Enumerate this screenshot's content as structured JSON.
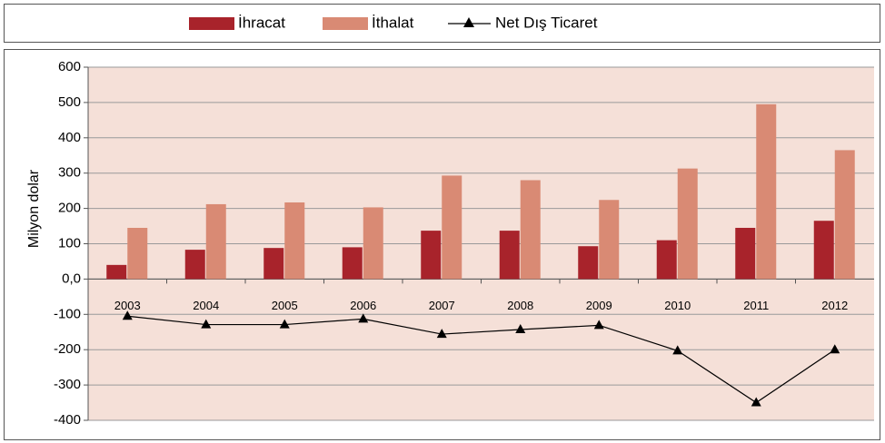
{
  "chart_data": {
    "type": "bar",
    "y_label": "Milyon dolar",
    "categories": [
      "2003",
      "2004",
      "2005",
      "2006",
      "2007",
      "2008",
      "2009",
      "2010",
      "2011",
      "2012"
    ],
    "series": [
      {
        "name": "İhracat",
        "color": "#a8232b",
        "values": [
          40,
          83,
          88,
          90,
          137,
          137,
          93,
          110,
          145,
          165
        ]
      },
      {
        "name": "İthalat",
        "color": "#d98a74",
        "values": [
          145,
          212,
          217,
          203,
          293,
          280,
          224,
          313,
          495,
          365
        ]
      },
      {
        "name": "Net Dış Ticaret",
        "color": "#000000",
        "type": "line",
        "values": [
          -105,
          -129,
          -129,
          -113,
          -156,
          -143,
          -131,
          -203,
          -350,
          -200
        ]
      }
    ],
    "ylim": [
      -400,
      600
    ],
    "yticks": [
      -400,
      -300,
      -200,
      -100,
      {
        "value": 0,
        "label": "0,0"
      },
      100,
      200,
      300,
      400,
      500,
      600
    ],
    "grid": true,
    "legend": "top"
  }
}
